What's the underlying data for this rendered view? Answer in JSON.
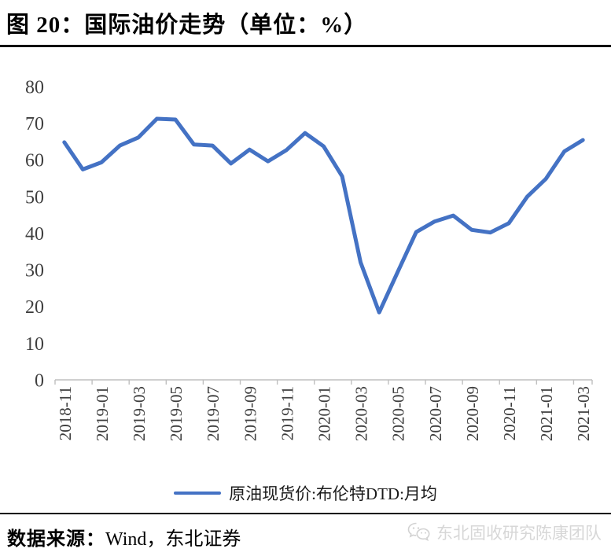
{
  "title": "图 20：国际油价走势（单位：%）",
  "legend": {
    "label": "原油现货价:布伦特DTD:月均"
  },
  "footer": {
    "source_label": "数据来源：",
    "source_value": "Wind，东北证券",
    "watermark": "东北固收研究陈康团队",
    "watermark_icon": "wechat-chat-bubbles-icon"
  },
  "colors": {
    "line": "#4472C4",
    "axis": "#BFBFBF",
    "tick_label": "#3F3F3F",
    "rule": "#000000",
    "watermark": "#D7D7D7"
  },
  "chart_data": {
    "type": "line",
    "title": "国际油价走势",
    "unit": "%",
    "x": [
      "2018-11",
      "2018-12",
      "2019-01",
      "2019-02",
      "2019-03",
      "2019-04",
      "2019-05",
      "2019-06",
      "2019-07",
      "2019-08",
      "2019-09",
      "2019-10",
      "2019-11",
      "2019-12",
      "2020-01",
      "2020-02",
      "2020-03",
      "2020-04",
      "2020-05",
      "2020-06",
      "2020-07",
      "2020-08",
      "2020-09",
      "2020-10",
      "2020-11",
      "2020-12",
      "2021-01",
      "2021-02",
      "2021-03"
    ],
    "series": [
      {
        "name": "原油现货价:布伦特DTD:月均",
        "values": [
          64.8,
          57.4,
          59.3,
          63.9,
          66.1,
          71.2,
          71.0,
          64.2,
          63.9,
          59.0,
          62.8,
          59.6,
          62.7,
          67.3,
          63.7,
          55.5,
          32.0,
          18.4,
          29.4,
          40.3,
          43.2,
          44.8,
          40.9,
          40.2,
          42.7,
          50.0,
          54.8,
          62.3,
          65.4
        ]
      }
    ],
    "x_tick_labels": [
      "2018-11",
      "2019-01",
      "2019-03",
      "2019-05",
      "2019-07",
      "2019-09",
      "2019-11",
      "2020-01",
      "2020-03",
      "2020-05",
      "2020-07",
      "2020-09",
      "2020-11",
      "2021-01",
      "2021-03"
    ],
    "y_ticks": [
      0,
      10,
      20,
      30,
      40,
      50,
      60,
      70,
      80
    ],
    "ylim": [
      0,
      80
    ],
    "grid": false,
    "legend_position": "bottom"
  }
}
